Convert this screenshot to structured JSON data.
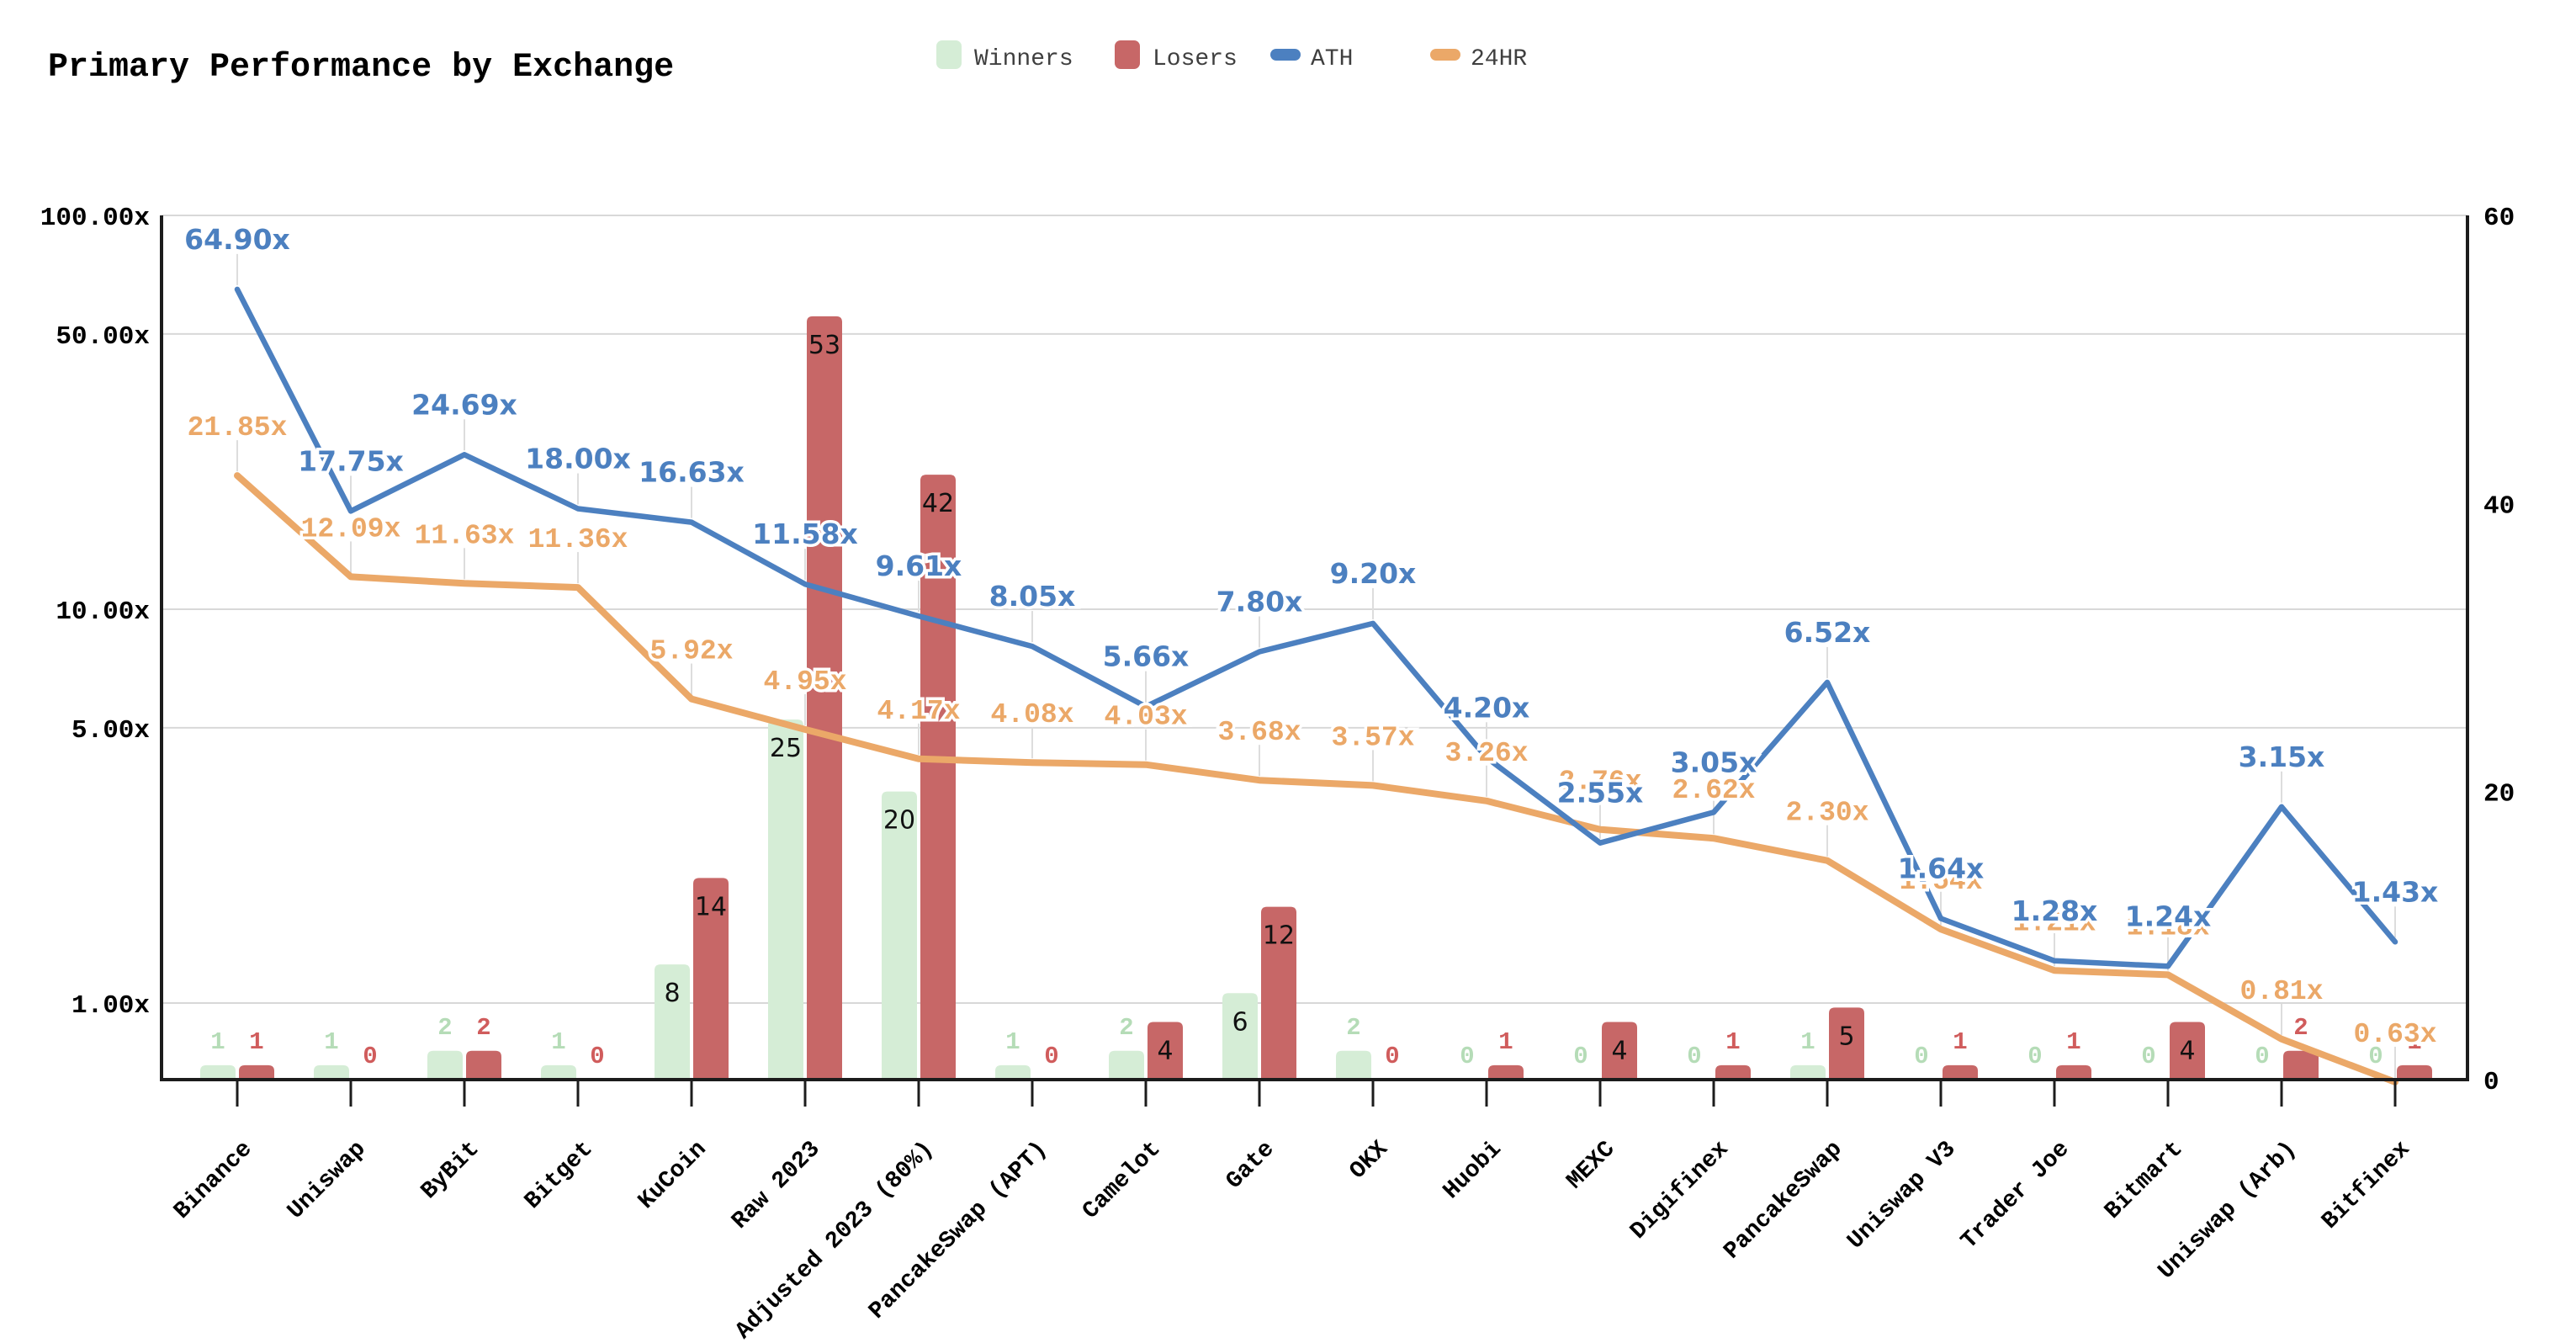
{
  "title": "Primary Performance by Exchange",
  "legend": [
    {
      "label": "Winners",
      "swatch": "square",
      "color": "#d5edd6"
    },
    {
      "label": "Losers",
      "swatch": "square",
      "color": "#c76767"
    },
    {
      "label": "ATH",
      "swatch": "dash",
      "color": "#4c80c0"
    },
    {
      "label": "24HR",
      "swatch": "dash",
      "color": "#eba868"
    }
  ],
  "colors": {
    "winners_bar": "#d5edd6",
    "winners_label": "#b5dcb7",
    "losers_bar": "#c76767",
    "losers_label": "#d05c5c",
    "ath_line": "#4c80c0",
    "h24_line": "#eba868",
    "grid": "#d8d8d8",
    "leader": "#dddddd",
    "axis": "#1c1c1c",
    "bar_count_text": "#111111",
    "legend_text": "#3f3f3f",
    "tick_text": "#000000"
  },
  "chart_data": {
    "type": "bar",
    "title": "Primary Performance by Exchange",
    "grid": "horizontal",
    "legend_position": "top",
    "categories": [
      "Binance",
      "Uniswap",
      "ByBit",
      "Bitget",
      "KuCoin",
      "Raw 2023",
      "Adjusted 2023 (80%)",
      "PancakeSwap (APT)",
      "Camelot",
      "Gate",
      "OKX",
      "Huobi",
      "MEXC",
      "Digifinex",
      "PancakeSwap",
      "Uniswap V3",
      "Trader Joe",
      "Bitmart",
      "Uniswap (Arb)",
      "Bitfinex"
    ],
    "series": [
      {
        "name": "Winners",
        "type": "bar",
        "axis": "right",
        "values": [
          1,
          1,
          2,
          1,
          8,
          25,
          20,
          1,
          2,
          6,
          2,
          0,
          0,
          0,
          1,
          0,
          0,
          0,
          0,
          0
        ]
      },
      {
        "name": "Losers",
        "type": "bar",
        "axis": "right",
        "values": [
          1,
          0,
          2,
          0,
          14,
          53,
          42,
          0,
          4,
          12,
          0,
          1,
          4,
          1,
          5,
          1,
          1,
          4,
          2,
          1
        ]
      },
      {
        "name": "ATH",
        "type": "line",
        "axis": "left",
        "values": [
          64.9,
          17.75,
          24.69,
          18.0,
          16.63,
          11.58,
          9.61,
          8.05,
          5.66,
          7.8,
          9.2,
          4.2,
          2.55,
          3.05,
          6.52,
          1.64,
          1.28,
          1.24,
          3.15,
          1.43
        ]
      },
      {
        "name": "24HR",
        "type": "line",
        "axis": "left",
        "values": [
          21.85,
          12.09,
          11.63,
          11.36,
          5.92,
          4.95,
          4.17,
          4.08,
          4.03,
          3.68,
          3.57,
          3.26,
          2.76,
          2.62,
          2.3,
          1.54,
          1.21,
          1.18,
          0.81,
          0.63
        ]
      }
    ],
    "point_label_suffix": "x",
    "left_axis": {
      "scale": "log",
      "tick_labels": [
        "100.00x",
        "50.00x",
        "10.00x",
        "5.00x",
        "1.00x"
      ],
      "tick_values": [
        100,
        50,
        10,
        5,
        1
      ],
      "min": 0.64,
      "max": 100
    },
    "right_axis": {
      "scale": "linear",
      "tick_labels": [
        "60",
        "40",
        "20",
        "0"
      ],
      "tick_values": [
        60,
        40,
        20,
        0
      ],
      "min": 0,
      "max": 60
    }
  }
}
